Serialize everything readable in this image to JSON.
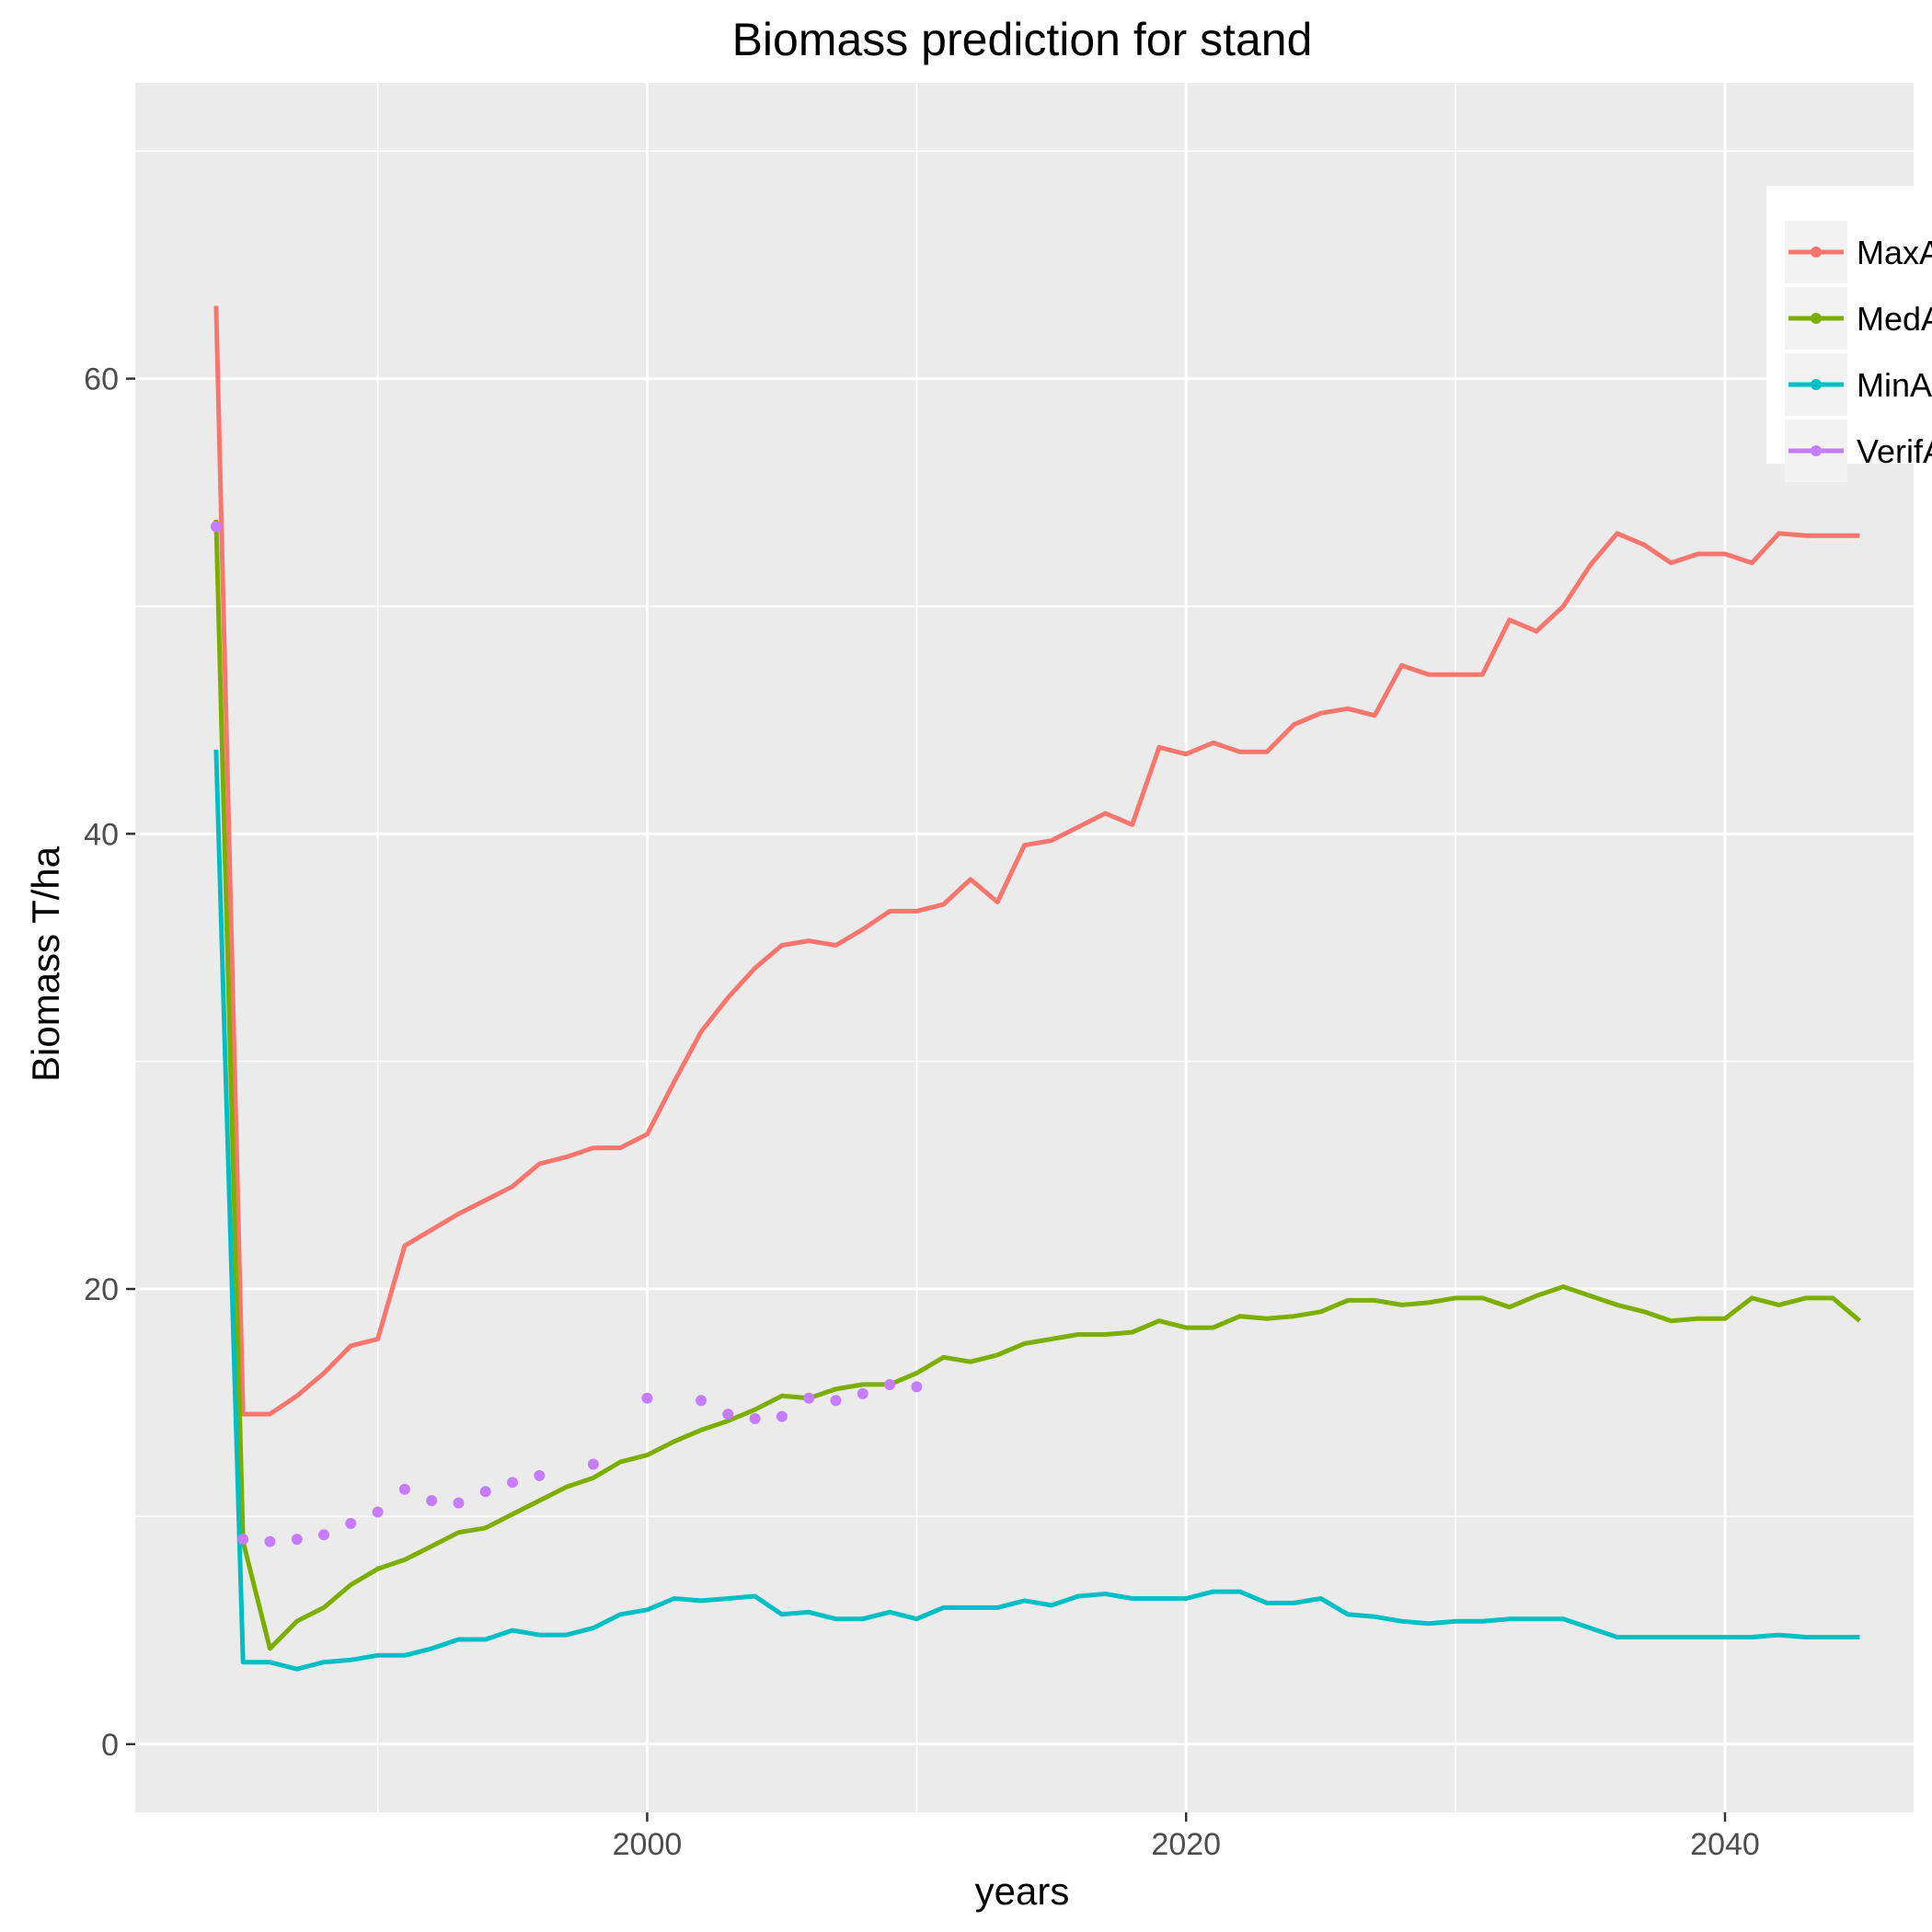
{
  "chart_data": {
    "type": "line",
    "title": "Biomass prediction for stand",
    "xlabel": "years",
    "ylabel": "Biomass T/ha",
    "xlim": [
      1981,
      2047
    ],
    "ylim": [
      -3,
      73
    ],
    "xticks": [
      2000,
      2020,
      2040
    ],
    "yticks": [
      0,
      20,
      40,
      60
    ],
    "grid": true,
    "legend_position": "right (clipped)",
    "legend": [
      "MaxA",
      "MedA",
      "MinA",
      "VerifA"
    ],
    "series": [
      {
        "name": "MaxA",
        "style": "line",
        "color": "#F8766D",
        "x": [
          1984,
          1985,
          1986,
          1987,
          1988,
          1989,
          1990,
          1991,
          1992,
          1993,
          1994,
          1995,
          1996,
          1997,
          1998,
          1999,
          2000,
          2001,
          2002,
          2003,
          2004,
          2005,
          2006,
          2007,
          2008,
          2009,
          2010,
          2011,
          2012,
          2013,
          2014,
          2015,
          2016,
          2017,
          2018,
          2019,
          2020,
          2021,
          2022,
          2023,
          2024,
          2025,
          2026,
          2027,
          2028,
          2029,
          2030,
          2031,
          2032,
          2033,
          2034,
          2035,
          2036,
          2037,
          2038,
          2039,
          2040,
          2041,
          2042,
          2043,
          2044,
          2045
        ],
        "y": [
          63.2,
          14.5,
          14.5,
          15.3,
          16.3,
          17.5,
          17.8,
          21.9,
          22.6,
          23.3,
          23.9,
          24.5,
          25.5,
          25.8,
          26.2,
          26.2,
          26.8,
          29.1,
          31.3,
          32.8,
          34.1,
          35.1,
          35.3,
          35.1,
          35.8,
          36.6,
          36.6,
          36.9,
          38.0,
          37.0,
          39.5,
          39.7,
          40.3,
          40.9,
          40.4,
          43.8,
          43.5,
          44.0,
          43.6,
          43.6,
          44.8,
          45.3,
          45.5,
          45.2,
          47.4,
          47.0,
          47.0,
          47.0,
          49.4,
          48.9,
          50.0,
          51.8,
          53.2,
          52.7,
          51.9,
          52.3,
          52.3,
          51.9,
          53.2,
          53.1,
          53.1,
          53.1
        ]
      },
      {
        "name": "MedA",
        "style": "line",
        "color": "#7CAE00",
        "x": [
          1984,
          1985,
          1986,
          1987,
          1988,
          1989,
          1990,
          1991,
          1992,
          1993,
          1994,
          1995,
          1996,
          1997,
          1998,
          1999,
          2000,
          2001,
          2002,
          2003,
          2004,
          2005,
          2006,
          2007,
          2008,
          2009,
          2010,
          2011,
          2012,
          2013,
          2014,
          2015,
          2016,
          2017,
          2018,
          2019,
          2020,
          2021,
          2022,
          2023,
          2024,
          2025,
          2026,
          2027,
          2028,
          2029,
          2030,
          2031,
          2032,
          2033,
          2034,
          2035,
          2036,
          2037,
          2038,
          2039,
          2040,
          2041,
          2042,
          2043,
          2044,
          2045
        ],
        "y": [
          53.8,
          8.9,
          4.2,
          5.4,
          6.0,
          7.0,
          7.7,
          8.1,
          8.7,
          9.3,
          9.5,
          10.1,
          10.7,
          11.3,
          11.7,
          12.4,
          12.7,
          13.3,
          13.8,
          14.2,
          14.7,
          15.3,
          15.2,
          15.6,
          15.8,
          15.8,
          16.3,
          17.0,
          16.8,
          17.1,
          17.6,
          17.8,
          18.0,
          18.0,
          18.1,
          18.6,
          18.3,
          18.3,
          18.8,
          18.7,
          18.8,
          19.0,
          19.5,
          19.5,
          19.3,
          19.4,
          19.6,
          19.6,
          19.2,
          19.7,
          20.1,
          19.7,
          19.3,
          19.0,
          18.6,
          18.7,
          18.7,
          19.6,
          19.3,
          19.6,
          19.6,
          18.6
        ]
      },
      {
        "name": "MinA",
        "style": "line",
        "color": "#00BFC4",
        "x": [
          1984,
          1985,
          1986,
          1987,
          1988,
          1989,
          1990,
          1991,
          1992,
          1993,
          1994,
          1995,
          1996,
          1997,
          1998,
          1999,
          2000,
          2001,
          2002,
          2003,
          2004,
          2005,
          2006,
          2007,
          2008,
          2009,
          2010,
          2011,
          2012,
          2013,
          2014,
          2015,
          2016,
          2017,
          2018,
          2019,
          2020,
          2021,
          2022,
          2023,
          2024,
          2025,
          2026,
          2027,
          2028,
          2029,
          2030,
          2031,
          2032,
          2033,
          2034,
          2035,
          2036,
          2037,
          2038,
          2039,
          2040,
          2041,
          2042,
          2043,
          2044,
          2045
        ],
        "y": [
          43.7,
          3.6,
          3.6,
          3.3,
          3.6,
          3.7,
          3.9,
          3.9,
          4.2,
          4.6,
          4.6,
          5.0,
          4.8,
          4.8,
          5.1,
          5.7,
          5.9,
          6.4,
          6.3,
          6.4,
          6.5,
          5.7,
          5.8,
          5.5,
          5.5,
          5.8,
          5.5,
          6.0,
          6.0,
          6.0,
          6.3,
          6.1,
          6.5,
          6.6,
          6.4,
          6.4,
          6.4,
          6.7,
          6.7,
          6.2,
          6.2,
          6.4,
          5.7,
          5.6,
          5.4,
          5.3,
          5.4,
          5.4,
          5.5,
          5.5,
          5.5,
          5.1,
          4.7,
          4.7,
          4.7,
          4.7,
          4.7,
          4.7,
          4.8,
          4.7,
          4.7,
          4.7
        ]
      },
      {
        "name": "VerifA",
        "style": "points",
        "color": "#C77CFF",
        "x": [
          1984,
          1985,
          1986,
          1987,
          1988,
          1989,
          1990,
          1991,
          1992,
          1993,
          1994,
          1995,
          1996,
          1998,
          2000,
          2002,
          2003,
          2004,
          2005,
          2006,
          2007,
          2008,
          2009,
          2010
        ],
        "y": [
          53.5,
          9.0,
          8.9,
          9.0,
          9.2,
          9.7,
          10.2,
          11.2,
          10.7,
          10.6,
          11.1,
          11.5,
          11.8,
          12.3,
          15.2,
          15.1,
          14.5,
          14.3,
          14.4,
          15.2,
          15.1,
          15.4,
          15.8,
          15.7
        ]
      }
    ]
  }
}
